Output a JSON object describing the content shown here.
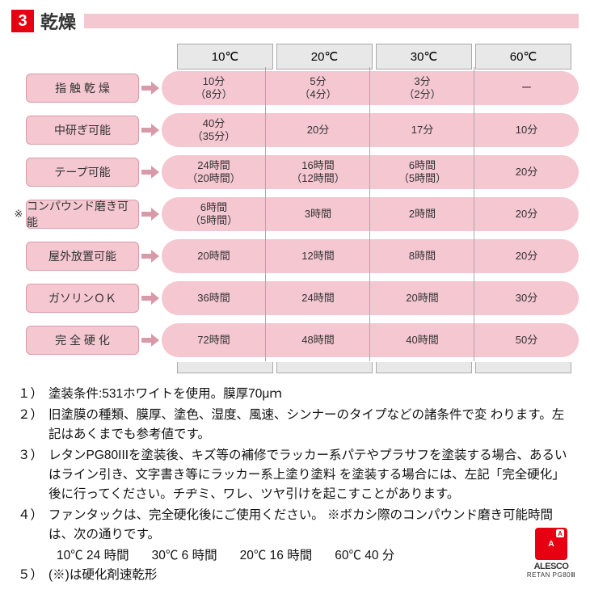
{
  "header": {
    "number": "3",
    "title": "乾燥"
  },
  "colors": {
    "accent_red": "#e60012",
    "pink_fill": "#f4c7d1",
    "pink_border": "#d89aa8",
    "gray_fill": "#e8e8e8",
    "gray_border": "#aaaaaa",
    "text": "#333333",
    "bg": "#ffffff"
  },
  "table": {
    "columns": [
      "10℃",
      "20℃",
      "30℃",
      "60℃"
    ],
    "rows": [
      {
        "annot": "",
        "label": "指 触 乾 燥",
        "cells": [
          [
            "10分",
            "（8分）"
          ],
          [
            "5分",
            "（4分）"
          ],
          [
            "3分",
            "（2分）"
          ],
          [
            "ー"
          ]
        ]
      },
      {
        "annot": "",
        "label": "中研ぎ可能",
        "cells": [
          [
            "40分",
            "（35分）"
          ],
          [
            "20分"
          ],
          [
            "17分"
          ],
          [
            "10分"
          ]
        ]
      },
      {
        "annot": "",
        "label": "テープ可能",
        "cells": [
          [
            "24時間",
            "（20時間）"
          ],
          [
            "16時間",
            "（12時間）"
          ],
          [
            "6時間",
            "（5時間）"
          ],
          [
            "20分"
          ]
        ]
      },
      {
        "annot": "※",
        "label": "コンパウンド磨き可能",
        "cells": [
          [
            "6時間",
            "（5時間）"
          ],
          [
            "3時間"
          ],
          [
            "2時間"
          ],
          [
            "20分"
          ]
        ]
      },
      {
        "annot": "",
        "label": "屋外放置可能",
        "cells": [
          [
            "20時間"
          ],
          [
            "12時間"
          ],
          [
            "8時間"
          ],
          [
            "20分"
          ]
        ]
      },
      {
        "annot": "",
        "label": "ガソリンＯＫ",
        "cells": [
          [
            "36時間"
          ],
          [
            "24時間"
          ],
          [
            "20時間"
          ],
          [
            "30分"
          ]
        ]
      },
      {
        "annot": "",
        "label": "完 全 硬 化",
        "cells": [
          [
            "72時間"
          ],
          [
            "48時間"
          ],
          [
            "40時間"
          ],
          [
            "50分"
          ]
        ]
      }
    ]
  },
  "notes": [
    {
      "n": "１）",
      "t": "塗装条件:531ホワイトを使用。膜厚70μｍ"
    },
    {
      "n": "２）",
      "t": "旧塗膜の種類、膜厚、塗色、湿度、風速、シンナーのタイプなどの諸条件で変 わります。左記はあくまでも参考値です。"
    },
    {
      "n": "３）",
      "t": "レタンPG80IIIを塗装後、キズ等の補修でラッカー系パテやプラサフを塗装する場合、あるいはライン引き、文字書き等にラッカー系上塗り塗料 を塗装する場合には、左記「完全硬化」後に行ってください。チヂミ、ワレ、ツヤ引けを起こすことがあります。"
    },
    {
      "n": "４）",
      "t": "ファンタックは、完全硬化後にご使用ください。 ※ボカシ際のコンパウンド磨き可能時間は、次の通りです。"
    }
  ],
  "times": [
    "10℃ 24 時間",
    "30℃ 6 時間",
    "20℃ 16 時間",
    "60℃ 40 分"
  ],
  "note5": {
    "n": "５）",
    "t": "(※)は硬化剤速乾形"
  },
  "logo": {
    "mark": "A",
    "name": "ALESCO",
    "sub": "RETAN PG80Ⅲ"
  }
}
